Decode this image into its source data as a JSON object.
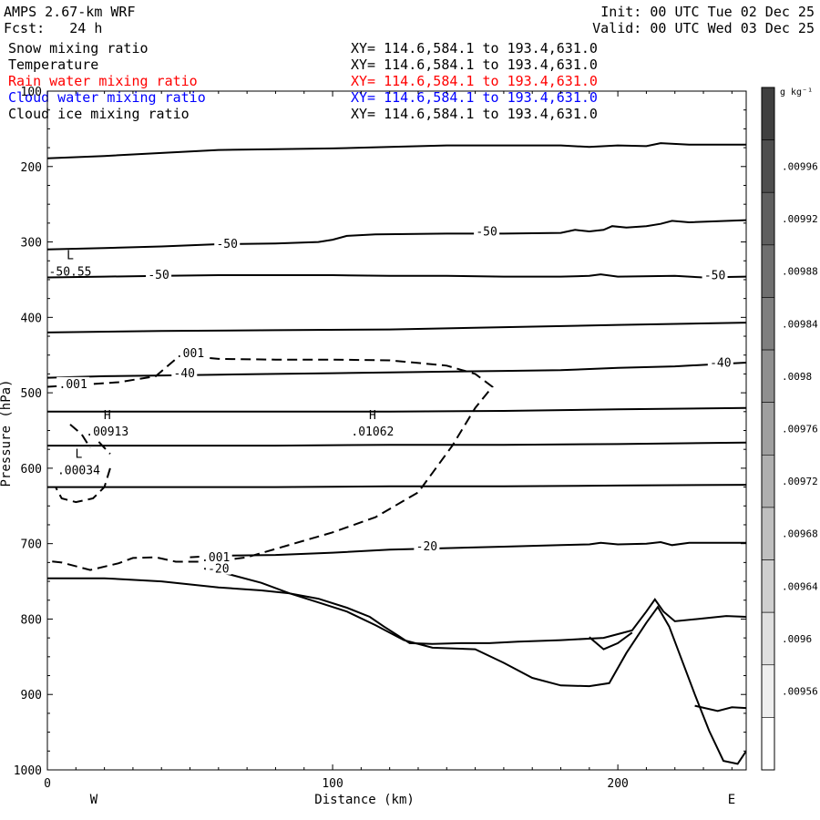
{
  "header": {
    "title": "AMPS 2.67-km WRF",
    "forecast": "Fcst:   24 h",
    "init": "Init: 00 UTC Tue 02 Dec 25",
    "valid": "Valid: 00 UTC Wed 03 Dec 25"
  },
  "fields": [
    {
      "name": "Snow mixing ratio",
      "xy": "XY= 114.6,584.1 to 193.4,631.0",
      "color": "#000000"
    },
    {
      "name": "Temperature",
      "xy": "XY= 114.6,584.1 to 193.4,631.0",
      "color": "#000000"
    },
    {
      "name": "Rain water mixing ratio",
      "xy": "XY= 114.6,584.1 to 193.4,631.0",
      "color": "#ff0000"
    },
    {
      "name": "Cloud water mixing ratio",
      "xy": "XY= 114.6,584.1 to 193.4,631.0",
      "color": "#0000ff"
    },
    {
      "name": "Cloud ice mixing ratio",
      "xy": "XY= 114.6,584.1 to 193.4,631.0",
      "color": "#000000"
    }
  ],
  "chart_data": {
    "type": "cross-section contour",
    "xlabel": "Distance (km)",
    "ylabel": "Pressure (hPa)",
    "xlim": [
      0,
      245
    ],
    "ylim": [
      1000,
      100
    ],
    "x_ticks": [
      0,
      100,
      200
    ],
    "y_ticks": [
      100,
      200,
      300,
      400,
      500,
      600,
      700,
      800,
      900,
      1000
    ],
    "y_tick_labels": [
      "100",
      "200",
      "300",
      "400",
      "500",
      "600",
      "700",
      "800",
      "900",
      "1000"
    ],
    "direction_left": "W",
    "direction_right": "E",
    "colorbar": {
      "unit": "g kg⁻¹",
      "labels": [
        ".00996",
        ".00992",
        ".00988",
        ".00984",
        ".0098",
        ".00976",
        ".00972",
        ".00968",
        ".00964",
        ".0096",
        ".00956"
      ],
      "colors": [
        "#3f3f3f",
        "#4e4e4e",
        "#5f5f5f",
        "#6f6f6f",
        "#7f7f7f",
        "#8f8f8f",
        "#9f9f9f",
        "#afafaf",
        "#bfbfbf",
        "#cfcfcf",
        "#dfdfdf",
        "#efefef",
        "#ffffff"
      ]
    },
    "isotherms": [
      {
        "points": [
          [
            0,
            189
          ],
          [
            20,
            186
          ],
          [
            40,
            182
          ],
          [
            60,
            178
          ],
          [
            80,
            177
          ],
          [
            100,
            176
          ],
          [
            120,
            174
          ],
          [
            140,
            172
          ],
          [
            160,
            172
          ],
          [
            180,
            172
          ],
          [
            190,
            174
          ],
          [
            200,
            172
          ],
          [
            210,
            173
          ],
          [
            215,
            169
          ],
          [
            225,
            171
          ],
          [
            245,
            171
          ]
        ]
      },
      {
        "label": "-50",
        "points": [
          [
            0,
            310
          ],
          [
            20,
            308
          ],
          [
            40,
            306
          ],
          [
            60,
            303
          ],
          [
            80,
            302
          ],
          [
            95,
            300
          ],
          [
            100,
            297
          ],
          [
            105,
            292
          ],
          [
            115,
            290
          ],
          [
            140,
            289
          ],
          [
            160,
            289
          ],
          [
            180,
            288
          ],
          [
            185,
            284
          ],
          [
            190,
            286
          ],
          [
            195,
            284
          ],
          [
            198,
            279
          ],
          [
            203,
            281
          ],
          [
            210,
            279
          ],
          [
            215,
            276
          ],
          [
            219,
            272
          ],
          [
            225,
            274
          ],
          [
            245,
            271
          ]
        ]
      },
      {
        "label": "-50",
        "points": [
          [
            0,
            347
          ],
          [
            20,
            346
          ],
          [
            40,
            345
          ],
          [
            60,
            344
          ],
          [
            80,
            344
          ],
          [
            100,
            344
          ],
          [
            120,
            345
          ],
          [
            140,
            345
          ],
          [
            160,
            346
          ],
          [
            180,
            346
          ],
          [
            190,
            345
          ],
          [
            194,
            343
          ],
          [
            200,
            346
          ],
          [
            220,
            345
          ],
          [
            230,
            347
          ],
          [
            245,
            346
          ]
        ]
      },
      {
        "points": [
          [
            0,
            420
          ],
          [
            40,
            418
          ],
          [
            80,
            417
          ],
          [
            120,
            416
          ],
          [
            160,
            413
          ],
          [
            200,
            410
          ],
          [
            245,
            407
          ]
        ]
      },
      {
        "label": "-40",
        "points": [
          [
            0,
            480
          ],
          [
            20,
            478
          ],
          [
            40,
            477
          ],
          [
            60,
            476
          ],
          [
            80,
            475
          ],
          [
            100,
            474
          ],
          [
            120,
            473
          ],
          [
            140,
            472
          ],
          [
            160,
            471
          ],
          [
            180,
            470
          ],
          [
            200,
            467
          ],
          [
            220,
            465
          ],
          [
            245,
            460
          ]
        ]
      },
      {
        "points": [
          [
            0,
            525
          ],
          [
            40,
            525
          ],
          [
            80,
            525
          ],
          [
            120,
            525
          ],
          [
            160,
            524
          ],
          [
            200,
            522
          ],
          [
            245,
            520
          ]
        ]
      },
      {
        "points": [
          [
            0,
            570
          ],
          [
            40,
            570
          ],
          [
            80,
            570
          ],
          [
            120,
            569
          ],
          [
            160,
            569
          ],
          [
            200,
            568
          ],
          [
            245,
            566
          ]
        ]
      },
      {
        "points": [
          [
            0,
            625
          ],
          [
            40,
            625
          ],
          [
            80,
            625
          ],
          [
            120,
            624
          ],
          [
            160,
            624
          ],
          [
            200,
            623
          ],
          [
            245,
            622
          ]
        ]
      },
      {
        "label": "-20",
        "points": [
          [
            50,
            718
          ],
          [
            60,
            716
          ],
          [
            80,
            715
          ],
          [
            100,
            712
          ],
          [
            120,
            708
          ],
          [
            140,
            706
          ],
          [
            160,
            704
          ],
          [
            180,
            702
          ],
          [
            190,
            701
          ],
          [
            194,
            699
          ],
          [
            200,
            701
          ],
          [
            210,
            700
          ],
          [
            215,
            698
          ],
          [
            219,
            702
          ],
          [
            225,
            699
          ],
          [
            245,
            699
          ]
        ]
      },
      {
        "points": [
          [
            0,
            746
          ],
          [
            20,
            746
          ],
          [
            40,
            750
          ],
          [
            60,
            758
          ],
          [
            75,
            762
          ],
          [
            85,
            766
          ]
        ]
      },
      {
        "label": "-20",
        "points": [
          [
            55,
            733
          ],
          [
            65,
            742
          ],
          [
            75,
            752
          ],
          [
            85,
            766
          ],
          [
            95,
            773
          ],
          [
            105,
            785
          ],
          [
            113,
            797
          ],
          [
            118,
            810
          ],
          [
            123,
            822
          ],
          [
            127,
            832
          ],
          [
            135,
            833
          ],
          [
            145,
            832
          ],
          [
            155,
            832
          ],
          [
            165,
            830
          ],
          [
            180,
            828
          ],
          [
            195,
            825
          ],
          [
            200,
            820
          ],
          [
            205,
            815
          ],
          [
            210,
            790
          ],
          [
            213,
            774
          ],
          [
            216,
            790
          ],
          [
            220,
            803
          ],
          [
            228,
            800
          ],
          [
            238,
            796
          ],
          [
            245,
            797
          ]
        ]
      },
      {
        "points": [
          [
            85,
            766
          ],
          [
            95,
            778
          ],
          [
            105,
            790
          ],
          [
            115,
            808
          ],
          [
            125,
            828
          ],
          [
            135,
            838
          ],
          [
            150,
            840
          ],
          [
            160,
            858
          ],
          [
            170,
            878
          ],
          [
            180,
            888
          ],
          [
            190,
            889
          ],
          [
            197,
            885
          ],
          [
            203,
            845
          ],
          [
            210,
            805
          ],
          [
            214,
            784
          ],
          [
            218,
            810
          ],
          [
            222,
            850
          ],
          [
            227,
            900
          ],
          [
            232,
            948
          ],
          [
            237,
            988
          ],
          [
            242,
            992
          ],
          [
            245,
            975
          ]
        ]
      },
      {
        "points": [
          [
            190,
            824
          ],
          [
            195,
            840
          ],
          [
            200,
            832
          ],
          [
            205,
            818
          ]
        ]
      },
      {
        "points": [
          [
            227,
            915
          ],
          [
            235,
            922
          ],
          [
            240,
            917
          ],
          [
            245,
            918
          ]
        ]
      }
    ],
    "mixing_ratio_contours": [
      {
        "label": ".001",
        "points": [
          [
            0,
            492
          ],
          [
            10,
            490
          ],
          [
            25,
            486
          ],
          [
            38,
            478
          ],
          [
            42,
            465
          ],
          [
            46,
            452
          ],
          [
            52,
            452
          ],
          [
            60,
            455
          ],
          [
            80,
            456
          ],
          [
            100,
            456
          ],
          [
            120,
            457
          ],
          [
            140,
            464
          ],
          [
            150,
            475
          ],
          [
            156,
            492
          ],
          [
            150,
            520
          ],
          [
            142,
            570
          ],
          [
            130,
            632
          ],
          [
            115,
            665
          ],
          [
            100,
            685
          ],
          [
            80,
            707
          ],
          [
            70,
            718
          ],
          [
            58,
            724
          ],
          [
            45,
            724
          ],
          [
            38,
            718
          ],
          [
            30,
            719
          ],
          [
            25,
            726
          ],
          [
            15,
            735
          ],
          [
            5,
            725
          ],
          [
            0,
            723
          ]
        ]
      },
      {
        "points": [
          [
            8,
            542
          ],
          [
            12,
            555
          ],
          [
            15,
            573
          ]
        ]
      },
      {
        "points": [
          [
            18,
            565
          ],
          [
            22,
            581
          ]
        ]
      },
      {
        "points": [
          [
            22,
            600
          ],
          [
            20,
            625
          ],
          [
            16,
            640
          ],
          [
            10,
            645
          ],
          [
            5,
            640
          ],
          [
            3,
            626
          ]
        ]
      }
    ],
    "extrema": [
      {
        "kind": "L",
        "value": "-50.55",
        "x": 8,
        "y": 323
      },
      {
        "kind": "H",
        "value": ".00913",
        "x": 21,
        "y": 535
      },
      {
        "kind": "H",
        "value": ".01062",
        "x": 114,
        "y": 535
      },
      {
        "kind": "L",
        "value": ".00034",
        "x": 11,
        "y": 586
      }
    ],
    "inline_labels": [
      {
        "text": "-50",
        "x": 63,
        "y": 304
      },
      {
        "text": "-50",
        "x": 154,
        "y": 288
      },
      {
        "text": "-50",
        "x": 39,
        "y": 345
      },
      {
        "text": "-50",
        "x": 234,
        "y": 346
      },
      {
        "text": "-40",
        "x": 48,
        "y": 476
      },
      {
        "text": "-40",
        "x": 236,
        "y": 462
      },
      {
        "text": "-20",
        "x": 133,
        "y": 705
      },
      {
        "text": "-20",
        "x": 60,
        "y": 735
      },
      {
        "text": ".001",
        "x": 50,
        "y": 449
      },
      {
        "text": ".001",
        "x": 9,
        "y": 490
      },
      {
        "text": ".001",
        "x": 59,
        "y": 720
      }
    ]
  }
}
